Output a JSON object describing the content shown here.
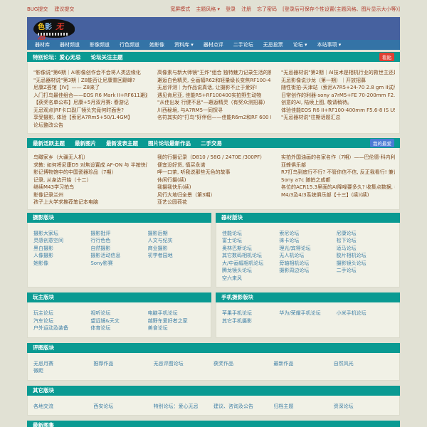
{
  "topbar": {
    "left_links": [
      "BUG提交",
      "建议提交"
    ],
    "right_links": [
      "宽屏模式",
      "主题风格 ▾",
      "登录",
      "注册",
      "忘了密码",
      "[登录后可保存个性设置(主题风格、图片显示大小等)]"
    ]
  },
  "logo": {
    "part1": "色",
    "part2": "影",
    "part3": "无忌",
    "reg": "®"
  },
  "nav": {
    "items": [
      "器材库",
      "器材频道",
      "影像频道",
      "行色频道",
      "她影像",
      "资料库 ▾",
      "器材点评",
      "二手论坛",
      "无忌投票",
      "论坛 ▾",
      "本站事项 ▾"
    ]
  },
  "section1": {
    "title": "特别论坛：爱心无忌",
    "subtitle": "论坛关注主题",
    "button": "看贴",
    "columns": [
      [
        "\"影像说\"第6期｜AI影像创作会不会将人类边缘化",
        "\"无忌器材说\"第3期｜Z8能否让尼康重回巅峰?",
        "尼康Z荟馆【IV】—— Z8来了",
        "入门打鸟最佳组合——EOS R6 Mark II+RF611邂逅林间精灵（...",
        "【获奖名单公布】尼康+5月双月赛: 春游记",
        "无忌观点|RF卡口副厂镜头究竟何时面世?",
        "享受摄影, 体验【索尼A7Rm5+50/1.4GM】",
        "论坛整改公告"
      ],
      [
        "高像素与新大师镜\"王炸\"组合 独特魅力记录生活的影像碎片",
        "邂逅白色精灵, 全画幅R62和轻量级长变焦RF100-400/5.6-8舒...",
        "无忌评测｜为作品说真话, 让摄影不止于爱好!",
        "遇见肯尼亚, 佳能R5+RF100400实拍野生动物",
        "\"从佳出发 行健不息\"—邂逅精灵（有奖众测招募）",
        "川西秘境, 与A7RM5一同探寻",
        "名符其实的\"打鸟\"好伴侣——佳能R6m2和RF 600 F11 IS STM 镜..."
      ],
      [
        "\"无忌器材说\"第2期｜AI技术是相机行业的救世主还是催命鬼?",
        "无忌影像说沙龙（第一期）｜开放招募",
        "随性街拍-天津站（索尼A7R5+24-70 2.8 gm II试用）",
        "日常创作的利器-sony a7rM5+FE 70-200mm F2.8 GM 拍摄感受(...",
        "创意的AI, 陆续上图, 敬请稍待。",
        "体验佳能EOS R6 II+RF100-400mm F5.6-8 IS USM 套机, 开心...",
        "\"无忌器材说\"往期话题汇总"
      ]
    ]
  },
  "section2": {
    "tabs": [
      "最新活跃主题",
      "最新图片",
      "最新发表主题",
      "图片论坛最新作品",
      "二手交易"
    ],
    "button": "我的最爱",
    "columns": [
      [
        "鸟瞰家乡（大疆无人机）",
        "求教: 如何将尼康D5 对焦设置成 AF-ON 与 半按快门是两种不...",
        "影记博物馆中的中国瓷器珍品（7期）",
        "记录, 从身边开始（十二）",
        "继续M43学习拍鸟",
        "影像记录兰州",
        "孩子上大学求推荐笔记本电脑"
      ],
      [
        "我的行摄记录（D810 / 58G / 2470E /300PF）",
        "便宜没好货, 慎买永诺",
        "呷一口茶, 听我说那些无色的故事",
        "休闲行摄(续)",
        "我摄我快乐(续)",
        "风行大地归全景（第3期）",
        "亚艺公园荷花"
      ],
      [
        "实拍外国油画的名家名作（7期）——巴伦德·科内利斯·库库克 (...",
        "亚蜂俱乐部",
        "R7打鸟到底行不行? 不管你信不信, 反正我看行! 兼谈打鸟相...",
        "Sony a7c 随拍之成都",
        "各位的ACR15.3里面的AI降噪要多久? 收集点数据, 看看我是...",
        "M4/3及4/3系统俱乐部【十三】(续)(续)"
      ]
    ]
  },
  "blocks": [
    {
      "title": "摄影版块",
      "size": "half",
      "cols": 3,
      "links": [
        "摄影大家坛",
        "摄影批评",
        "摄影后期",
        "灵感创意空间",
        "行行色色",
        "人文与纪实",
        "黑白摄影",
        "自然摄影",
        "商业摄影",
        "人像摄影",
        "摄影活动信息",
        "初学者园地",
        "她影像",
        "Sony影赛"
      ]
    },
    {
      "title": "器材版块",
      "size": "half",
      "cols": 3,
      "links": [
        "佳能论坛",
        "索尼论坛",
        "尼康论坛",
        "富士论坛",
        "徕卡论坛",
        "松下论坛",
        "奥林巴斯论坛",
        "理光/宾得论坛",
        "适马论坛",
        "其它数码相机论坛",
        "无人机论坛",
        "胶片相机论坛",
        "大/中画幅相机论坛",
        "旁轴相机论坛",
        "摄影镜头论坛",
        "腾龙镜头论坛",
        "摄影周边论坛",
        "二手论坛",
        "空六来风"
      ]
    },
    {
      "title": "玩主版块",
      "size": "half",
      "cols": 3,
      "links": [
        "玩主论坛",
        "视听论坛",
        "电脑手机论坛",
        "汽车论坛",
        "望远镜&天文",
        "越野车爱好者之家",
        "户外运动及装备",
        "体育论坛",
        "美食论坛"
      ]
    },
    {
      "title": "手机摄影版块",
      "size": "half",
      "cols": 3,
      "links": [
        "苹果手机论坛",
        "华为/荣耀手机论坛",
        "小米手机论坛",
        "其它手机摄影"
      ]
    },
    {
      "title": "评图版块",
      "size": "full",
      "cols": 6,
      "links": [
        "无忌月赛",
        "推荐作品",
        "无忌评图论坛",
        "获奖作品",
        "最新作品",
        "自然风光",
        "微距"
      ]
    },
    {
      "title": "其它版块",
      "size": "full",
      "cols": 6,
      "links": [
        "各地交流",
        "西安论坛",
        "特别论坛：爱心无忌",
        "建议、咨询及公告",
        "归档主题",
        "资深论坛"
      ]
    },
    {
      "title": "最新图集",
      "size": "full",
      "cols": 6,
      "links": []
    }
  ],
  "colors": {
    "teal_header": "#0A9A92",
    "banner_blue": "#46619F",
    "nav_blue": "#3473A6",
    "topbar_link": "#B13A2C",
    "topic_link": "#7A4418",
    "block_link": "#3E7FA6",
    "button_red": "#E04033",
    "button_blue": "#4B7BD5",
    "page_background": "#E1E1D4",
    "panel_background": "#F1F1E6"
  }
}
